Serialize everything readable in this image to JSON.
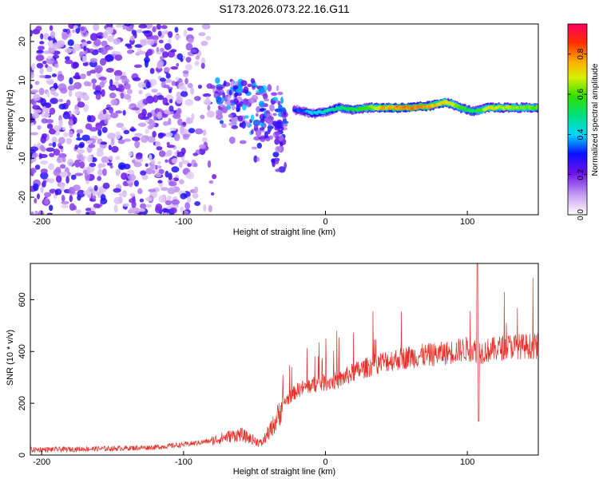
{
  "chart_data": [
    {
      "type": "heatmap",
      "title": "S173.2026.073.22.16.G11",
      "xlabel": "Height of straight line (km)",
      "ylabel": "Frequency (Hz)",
      "xlim": [
        -208,
        150
      ],
      "ylim": [
        -24.5,
        24.5
      ],
      "xticks": [
        -200,
        -100,
        0,
        100
      ],
      "yticks": [
        -20,
        -10,
        0,
        10,
        20
      ],
      "colorbar": {
        "label": "Normalized spectral amplitude",
        "range": [
          0,
          0.95
        ],
        "ticks": [
          "0.0",
          "0.2",
          "0.4",
          "0.6",
          "0.8"
        ],
        "tick_values": [
          0.0,
          0.2,
          0.4,
          0.6,
          0.8
        ]
      },
      "ridge": {
        "description": "frequency of dominant amplitude vs height",
        "x": [
          -22,
          -15,
          -8,
          0,
          10,
          20,
          30,
          40,
          60,
          75,
          85,
          95,
          105,
          115,
          150
        ],
        "freq": [
          2.5,
          2.0,
          1.5,
          2.0,
          3.0,
          2.5,
          3.0,
          3.0,
          3.0,
          3.5,
          4.5,
          3.0,
          2.0,
          3.0,
          3.0
        ],
        "amplitude": [
          0.3,
          0.35,
          0.4,
          0.45,
          0.5,
          0.55,
          0.6,
          0.75,
          0.8,
          0.75,
          0.7,
          0.6,
          0.5,
          0.7,
          0.6
        ]
      },
      "scatter_region": {
        "x_range": [
          -208,
          -78
        ],
        "freq_range": [
          -24.5,
          24.5
        ],
        "amplitude_range": [
          0.05,
          0.3
        ]
      },
      "turbulent_region": {
        "x_range": [
          -78,
          -28
        ],
        "freq_range": [
          -18,
          10
        ],
        "amplitude_range": [
          0.1,
          0.4
        ]
      }
    },
    {
      "type": "line",
      "xlabel": "Height of straight line (km)",
      "ylabel": "SNR (10 * v/v)",
      "xlim": [
        -208,
        150
      ],
      "ylim": [
        0,
        740
      ],
      "xticks": [
        -200,
        -100,
        0,
        100
      ],
      "yticks": [
        0,
        200,
        400,
        600
      ],
      "color": "#e8302a",
      "envelope": {
        "x": [
          -208,
          -150,
          -120,
          -100,
          -80,
          -70,
          -60,
          -45,
          -35,
          -30,
          -20,
          -10,
          0,
          10,
          20,
          30,
          40,
          50,
          60,
          80,
          90,
          100,
          110,
          120,
          130,
          150
        ],
        "snr": [
          20,
          25,
          30,
          40,
          55,
          70,
          80,
          45,
          130,
          200,
          250,
          270,
          280,
          290,
          320,
          340,
          360,
          370,
          380,
          390,
          400,
          410,
          400,
          410,
          420,
          420
        ]
      },
      "spike_events": [
        {
          "x": 107,
          "snr": 740
        },
        {
          "x": 108,
          "snr": 130
        }
      ]
    }
  ]
}
